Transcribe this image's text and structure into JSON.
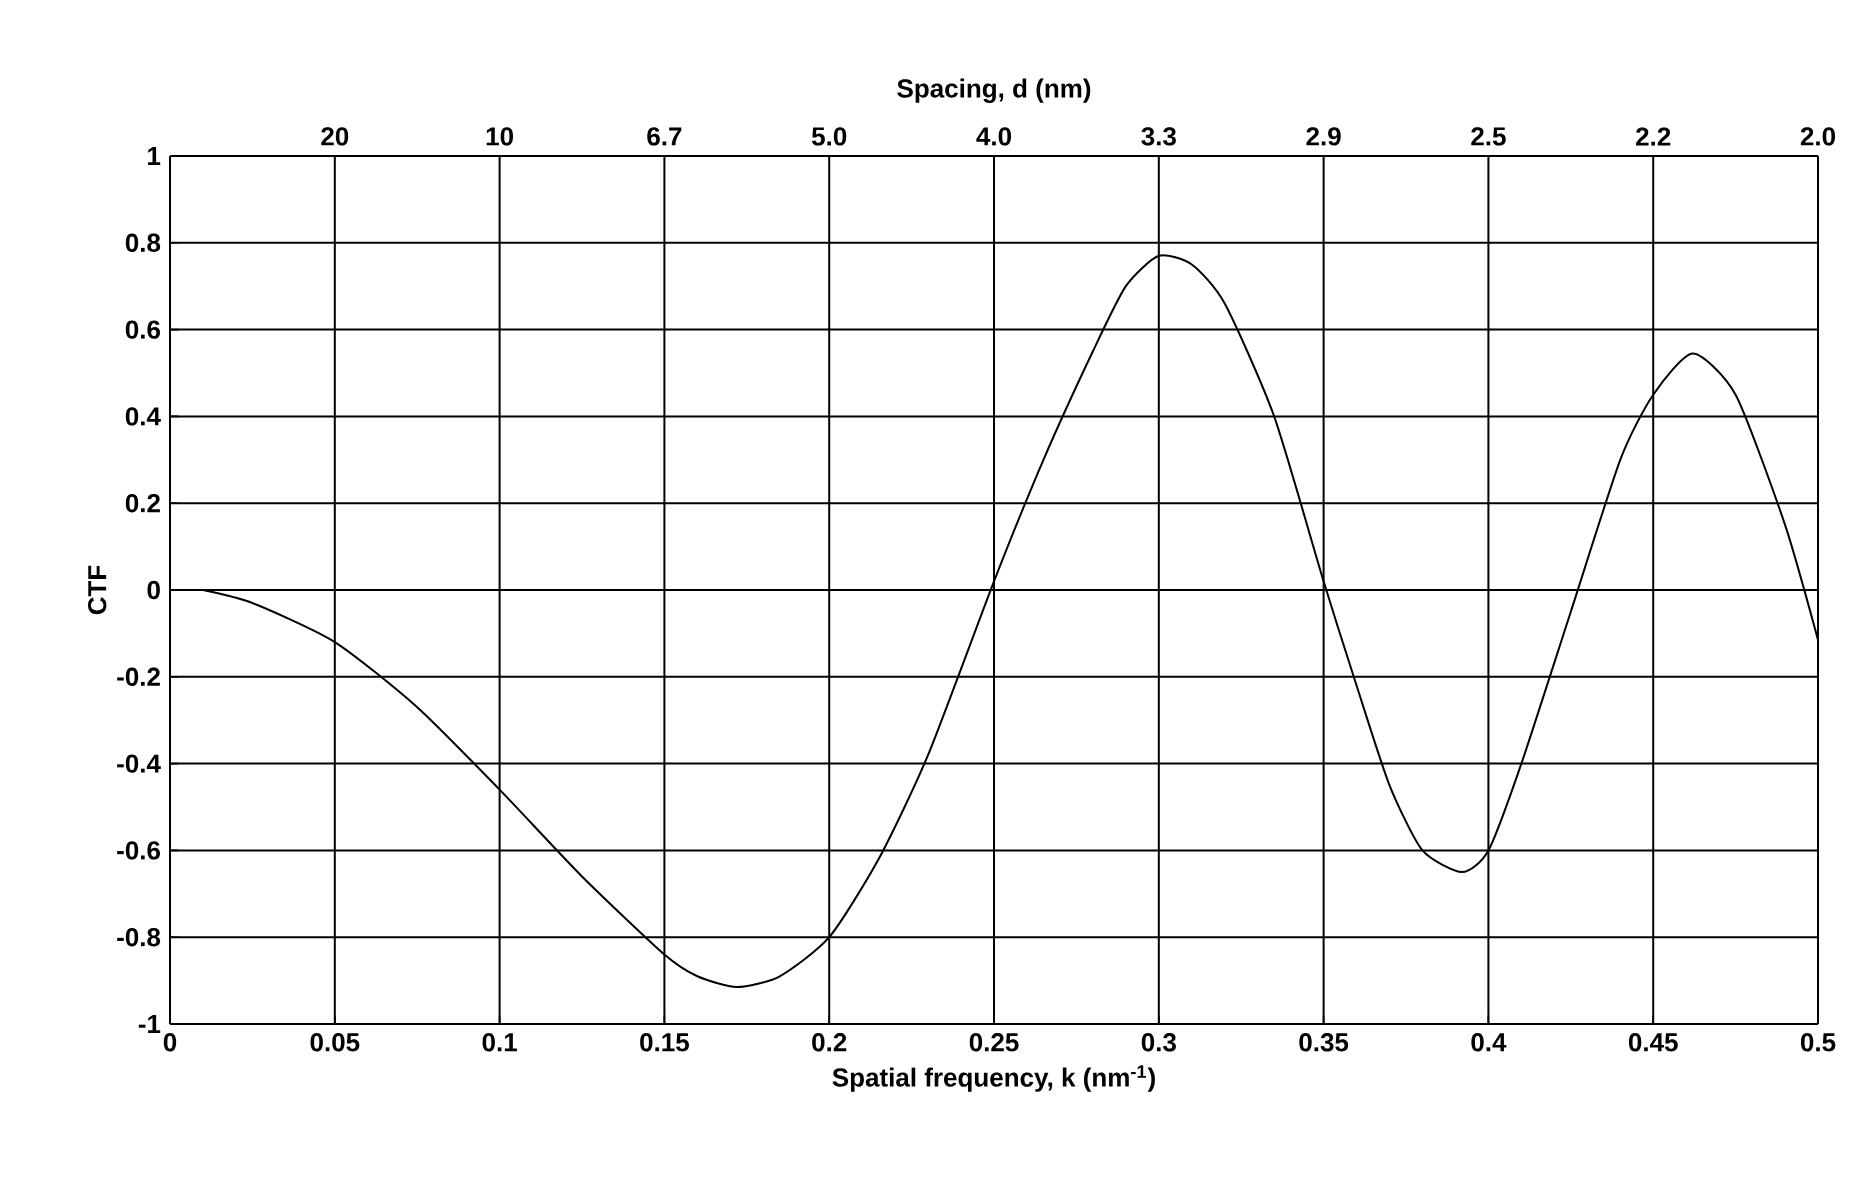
{
  "chart_data": {
    "type": "line",
    "xlabel": "Spatial frequency, k  (nm$^{-1}$)",
    "ylabel": "CTF",
    "x2label": "Spacing, d (nm)",
    "xlim": [
      0,
      0.5
    ],
    "ylim": [
      -1,
      1
    ],
    "xticks": [
      0,
      0.05,
      0.1,
      0.15,
      0.2,
      0.25,
      0.3,
      0.35,
      0.4,
      0.45,
      0.5
    ],
    "yticks": [
      -1,
      -0.8,
      -0.6,
      -0.4,
      -0.2,
      0,
      0.2,
      0.4,
      0.6,
      0.8,
      1
    ],
    "annotations": [
      "20",
      "10",
      "6.7",
      "5.0",
      "4.0",
      "3.3",
      "2.9",
      "2.5",
      "2.2",
      "2.0"
    ],
    "grid": true,
    "marker": "none",
    "line_style": "solid",
    "series": [
      {
        "color": "#000000",
        "x": [
          0.01,
          0.025,
          0.05,
          0.075,
          0.1,
          0.125,
          0.15,
          0.16,
          0.172,
          0.185,
          0.2,
          0.215,
          0.23,
          0.25,
          0.265,
          0.28,
          0.29,
          0.3,
          0.31,
          0.32,
          0.335,
          0.35,
          0.36,
          0.37,
          0.38,
          0.392,
          0.4,
          0.41,
          0.425,
          0.44,
          0.45,
          0.462,
          0.475,
          0.49,
          0.5
        ],
        "values": [
          0,
          -0.03,
          -0.12,
          -0.27,
          -0.46,
          -0.66,
          -0.84,
          -0.89,
          -0.915,
          -0.89,
          -0.8,
          -0.62,
          -0.38,
          0.02,
          0.3,
          0.55,
          0.7,
          0.77,
          0.75,
          0.66,
          0.4,
          0.02,
          -0.22,
          -0.45,
          -0.6,
          -0.65,
          -0.6,
          -0.4,
          -0.05,
          0.3,
          0.45,
          0.545,
          0.45,
          0.15,
          -0.115
        ]
      }
    ]
  }
}
